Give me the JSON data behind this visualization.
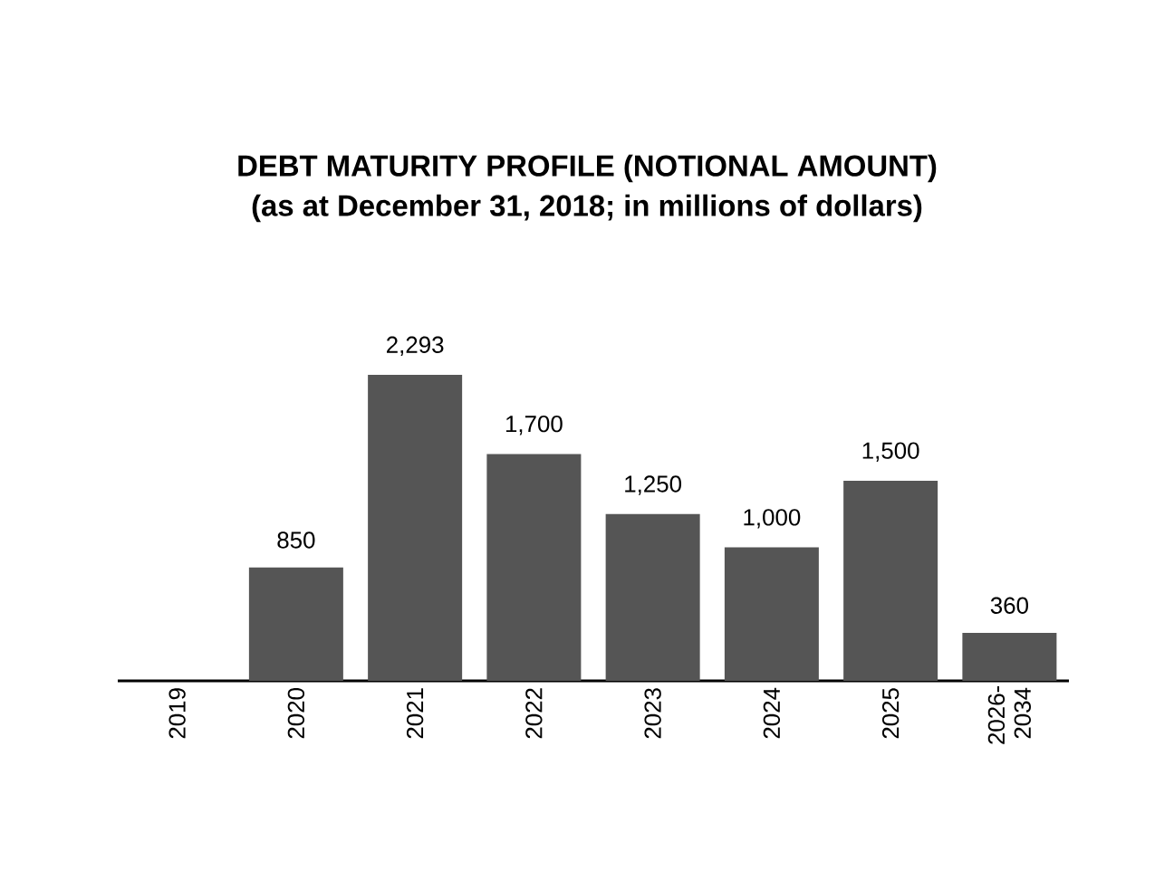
{
  "chart_data": {
    "type": "bar",
    "title": "DEBT MATURITY PROFILE (NOTIONAL AMOUNT)",
    "subtitle": "(as at December 31, 2018; in millions of dollars)",
    "categories": [
      "2019",
      "2020",
      "2021",
      "2022",
      "2023",
      "2024",
      "2025",
      "2026-2034"
    ],
    "values": [
      null,
      850,
      2293,
      1700,
      1250,
      1000,
      1500,
      360
    ],
    "value_labels": [
      null,
      "850",
      "2,293",
      "1,700",
      "1,250",
      "1,000",
      "1,500",
      "360"
    ],
    "color": "#555555"
  }
}
